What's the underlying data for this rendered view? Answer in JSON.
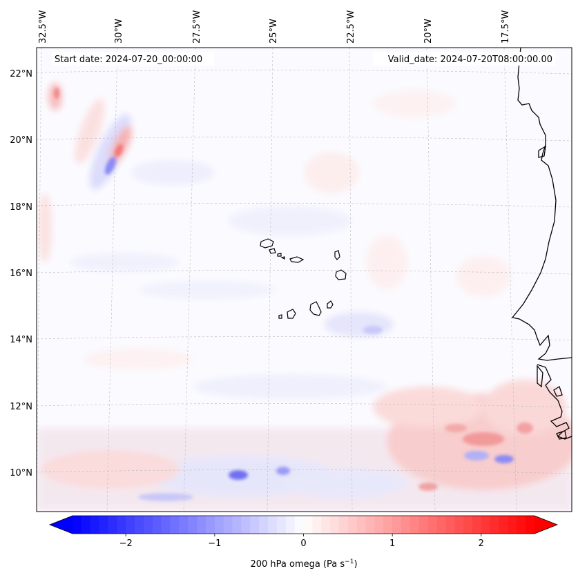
{
  "map": {
    "start_label": "Start date: 2024-07-20_00:00:00",
    "valid_label": "Valid_date: 2024-07-20T08:00:00.00",
    "lon_labels": [
      "32.5°W",
      "30°W",
      "27.5°W",
      "25°W",
      "22.5°W",
      "20°W",
      "17.5°W"
    ],
    "lat_labels": [
      "22°N",
      "20°N",
      "18°N",
      "16°N",
      "14°N",
      "12°N",
      "10°N"
    ],
    "coastline_color": "#000000",
    "gridline_color": "#bbbbbb"
  },
  "colorbar": {
    "range": [
      -2.6,
      2.6
    ],
    "ticks": [
      "−2",
      "−1",
      "0",
      "1",
      "2"
    ],
    "tick_values": [
      -2,
      -1,
      0,
      1,
      2
    ],
    "label_text": "200 hPa omega (Pa s",
    "label_sup": "−1",
    "label_close": ")",
    "colormap": "bwr",
    "min_color": "#0000ff",
    "mid_color": "#ffffff",
    "max_color": "#ff0000"
  }
}
